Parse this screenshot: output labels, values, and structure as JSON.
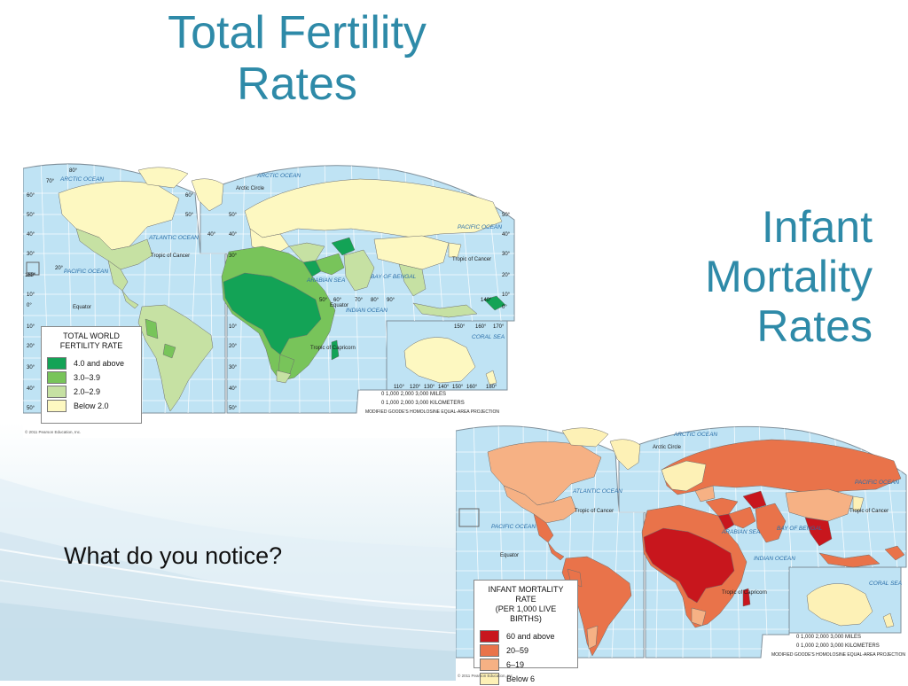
{
  "slide": {
    "title_left": [
      "Total Fertility",
      "Rates"
    ],
    "title_right": [
      "Infant",
      "Mortality",
      "Rates"
    ],
    "question": "What do you notice?"
  },
  "map_fertility": {
    "legend_title": [
      "TOTAL WORLD",
      "FERTILITY RATE"
    ],
    "legend": [
      {
        "label": "4.0 and above",
        "color": "#13a356"
      },
      {
        "label": "3.0–3.9",
        "color": "#78c45a"
      },
      {
        "label": "2.0–2.9",
        "color": "#c6e1a3"
      },
      {
        "label": "Below 2.0",
        "color": "#fdf8c1"
      }
    ],
    "labels": {
      "arctic_ocean": "ARCTIC OCEAN",
      "arctic_ocean_2": "ARCTIC OCEAN",
      "arctic_circle": "Arctic Circle",
      "atlantic_ocean": "ATLANTIC OCEAN",
      "pacific_ocean_w": "PACIFIC OCEAN",
      "pacific_ocean_e": "PACIFIC OCEAN",
      "indian_ocean": "INDIAN OCEAN",
      "tropic_cancer_w": "Tropic of Cancer",
      "tropic_cancer_e": "Tropic of Cancer",
      "tropic_capricorn": "Tropic of Capricorn",
      "equator_w": "Equator",
      "equator_e": "Equator",
      "arabian_sea": "ARABIAN SEA",
      "bay_bengal": "BAY OF BENGAL",
      "coral_sea": "CORAL SEA"
    },
    "lat_labels": [
      "80°",
      "70°",
      "60°",
      "50°",
      "40°",
      "30°",
      "20°",
      "10°",
      "0°",
      "10°",
      "20°",
      "30°",
      "40°",
      "50°"
    ],
    "lon_labels": [
      "50°",
      "60°",
      "70°",
      "80°",
      "90°",
      "140°",
      "150°",
      "160°",
      "170°",
      "110°",
      "120°",
      "130°",
      "140°",
      "150°",
      "160°",
      "180°",
      "160°",
      "20°"
    ],
    "scale_miles": "0       1,000       2,000       3,000 MILES",
    "scale_km": "0   1,000  2,000  3,000 KILOMETERS",
    "projection": "MODIFIED GOODE'S HOMOLOSINE EQUAL-AREA PROJECTION",
    "credit": "© 2011 Pearson Education, Inc."
  },
  "map_mortality": {
    "legend_title": [
      "INFANT MORTALITY RATE",
      "(PER 1,000 LIVE BIRTHS)"
    ],
    "legend": [
      {
        "label": "60 and above",
        "color": "#c8161d"
      },
      {
        "label": "20–59",
        "color": "#e9734a"
      },
      {
        "label": "6–19",
        "color": "#f6b184"
      },
      {
        "label": "Below 6",
        "color": "#fdf1b6"
      }
    ],
    "labels": {
      "arctic_ocean": "ARCTIC OCEAN",
      "arctic_circle": "Arctic Circle",
      "atlantic_ocean": "ATLANTIC OCEAN",
      "pacific_ocean_w": "PACIFIC OCEAN",
      "pacific_ocean_e": "PACIFIC OCEAN",
      "indian_ocean": "INDIAN OCEAN",
      "tropic_cancer_w": "Tropic of Cancer",
      "tropic_cancer_e": "Tropic of Cancer",
      "tropic_capricorn": "Tropic of Capricorn",
      "equator": "Equator",
      "arabian_sea": "ARABIAN SEA",
      "bay_bengal": "BAY OF BENGAL",
      "coral_sea": "CORAL SEA"
    },
    "scale_miles": "0       1,000       2,000       3,000 MILES",
    "scale_km": "0   1,000  2,000  3,000 KILOMETERS",
    "projection": "MODIFIED GOODE'S HOMOLOSINE EQUAL-AREA PROJECTION",
    "credit": "© 2011 Pearson Education, Inc."
  }
}
